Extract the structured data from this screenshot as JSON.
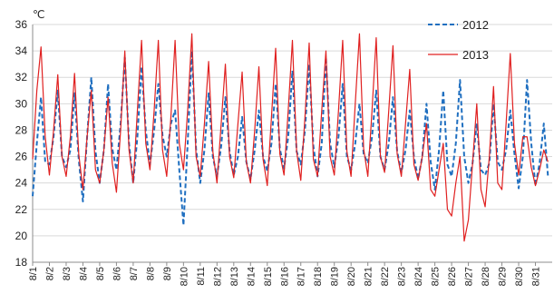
{
  "chart_data": {
    "type": "line",
    "unit_label": "℃",
    "ylim": [
      18,
      36
    ],
    "y_ticks": [
      18,
      20,
      22,
      24,
      26,
      28,
      30,
      32,
      34,
      36
    ],
    "x_ticks": [
      "8/1",
      "8/2",
      "8/3",
      "8/4",
      "8/5",
      "8/6",
      "8/7",
      "8/8",
      "8/9",
      "8/10",
      "8/11",
      "8/12",
      "8/13",
      "8/14",
      "8/15",
      "8/16",
      "8/17",
      "8/18",
      "8/19",
      "8/20",
      "8/21",
      "8/22",
      "8/23",
      "8/24",
      "8/25",
      "8/26",
      "8/27",
      "8/28",
      "8/29",
      "8/30",
      "8/31"
    ],
    "xlim": [
      1,
      32
    ],
    "grid": "horizontal",
    "legend_position": "top-right",
    "series": [
      {
        "name": "2012",
        "color": "#1f6fc0",
        "style": "dashed",
        "points_per_day": 4,
        "values": [
          23.0,
          27.0,
          30.5,
          25.6,
          25.4,
          27.5,
          31.0,
          26.0,
          25.2,
          26.5,
          30.8,
          25.8,
          22.6,
          27.5,
          32.0,
          26.4,
          24.0,
          26.5,
          31.5,
          26.6,
          25.0,
          28.5,
          33.5,
          27.0,
          24.0,
          27.5,
          32.8,
          28.0,
          25.4,
          28.0,
          31.5,
          27.6,
          26.0,
          28.5,
          29.5,
          25.0,
          20.8,
          27.0,
          34.0,
          26.6,
          24.0,
          26.5,
          30.8,
          26.0,
          24.5,
          26.8,
          30.5,
          26.4,
          24.6,
          26.0,
          29.0,
          25.6,
          24.3,
          26.5,
          29.5,
          26.0,
          24.9,
          27.0,
          31.5,
          26.6,
          25.1,
          27.5,
          32.5,
          26.4,
          25.4,
          28.0,
          33.0,
          26.8,
          24.5,
          27.0,
          33.5,
          27.0,
          25.2,
          27.5,
          31.5,
          26.0,
          25.0,
          27.0,
          30.0,
          26.2,
          25.5,
          27.5,
          31.0,
          26.0,
          25.0,
          27.0,
          30.5,
          26.4,
          24.8,
          26.5,
          29.5,
          26.0,
          24.3,
          26.0,
          30.0,
          25.6,
          23.5,
          26.5,
          31.0,
          25.4,
          24.5,
          27.0,
          31.8,
          26.0,
          24.0,
          25.5,
          28.5,
          25.0,
          24.6,
          25.5,
          30.0,
          25.6,
          25.0,
          26.5,
          29.5,
          26.2,
          23.6,
          26.0,
          31.8,
          27.0,
          23.8,
          25.5,
          28.5,
          24.5
        ]
      },
      {
        "name": "2013",
        "color": "#e02020",
        "style": "solid",
        "points_per_day": 4,
        "values": [
          25.8,
          31.0,
          34.3,
          27.5,
          24.6,
          28.0,
          32.2,
          26.0,
          24.5,
          27.5,
          32.3,
          26.2,
          23.5,
          27.5,
          31.0,
          25.0,
          24.0,
          26.5,
          30.5,
          25.5,
          23.3,
          28.0,
          34.0,
          26.5,
          24.0,
          29.5,
          34.8,
          27.0,
          25.0,
          29.5,
          34.8,
          26.5,
          24.5,
          29.0,
          34.8,
          27.0,
          25.0,
          29.5,
          35.3,
          26.0,
          24.5,
          28.5,
          33.2,
          26.4,
          24.0,
          28.5,
          33.0,
          26.0,
          24.4,
          28.5,
          32.4,
          25.6,
          24.0,
          28.0,
          32.8,
          25.8,
          23.8,
          29.0,
          34.2,
          26.2,
          24.6,
          29.5,
          34.8,
          26.4,
          24.2,
          29.0,
          34.6,
          25.8,
          24.5,
          29.5,
          34.0,
          26.0,
          24.6,
          29.5,
          34.8,
          26.4,
          24.5,
          30.0,
          35.3,
          26.6,
          24.5,
          29.5,
          35.0,
          26.0,
          24.8,
          29.5,
          34.4,
          26.2,
          24.5,
          28.5,
          32.6,
          25.4,
          24.2,
          26.0,
          28.5,
          23.5,
          23.0,
          25.0,
          27.0,
          22.0,
          21.5,
          24.0,
          26.0,
          19.6,
          21.2,
          25.5,
          30.0,
          23.5,
          22.2,
          26.0,
          31.3,
          24.0,
          23.5,
          28.5,
          33.8,
          27.0,
          24.6,
          27.5,
          27.5,
          25.2,
          23.8,
          25.0,
          26.5,
          25.6
        ]
      }
    ]
  }
}
